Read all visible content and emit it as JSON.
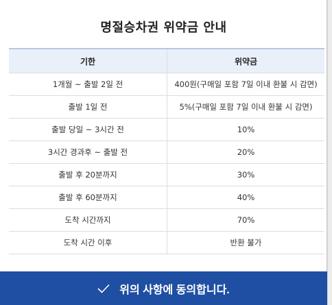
{
  "dialog": {
    "title": "명절승차권 위약금 안내"
  },
  "table": {
    "headers": [
      "기한",
      "위약금"
    ],
    "rows": [
      {
        "period": "1개월 ~ 출발 2일 전",
        "fee": "400원(구매일 포함 7일 이내 환불 시 감면)"
      },
      {
        "period": "출발 1일 전",
        "fee": "5%(구매일 포함 7일 이내 환불 시 감면)"
      },
      {
        "period": "출발 당일 ~ 3시간 전",
        "fee": "10%"
      },
      {
        "period": "3시간 경과후 ~ 출발 전",
        "fee": "20%"
      },
      {
        "period": "출발 후 20분까지",
        "fee": "30%"
      },
      {
        "period": "출발 후 60분까지",
        "fee": "40%"
      },
      {
        "period": "도착 시간까지",
        "fee": "70%"
      },
      {
        "period": "도착 시간 이후",
        "fee": "반환 불가"
      }
    ]
  },
  "agree_button": {
    "label": "위의 사항에 동의합니다.",
    "icon": "check-icon"
  },
  "colors": {
    "button_bg": "#1f4fa2",
    "header_bg": "#e9f0fa",
    "accent_text": "#e07800"
  }
}
